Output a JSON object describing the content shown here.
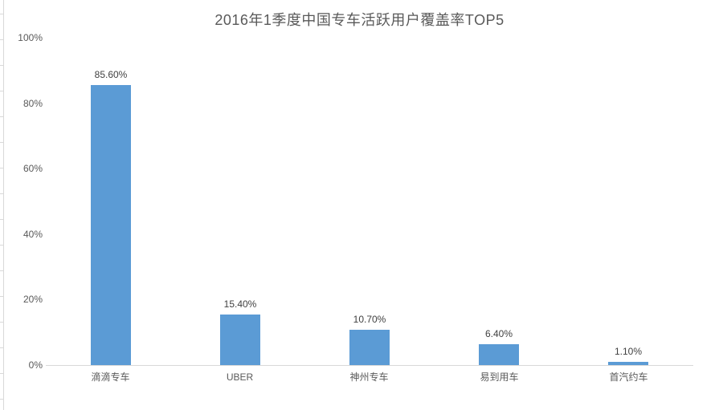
{
  "title": "2016年1季度中国专车活跃用户覆盖率TOP5",
  "chart_data": {
    "type": "bar",
    "title": "2016年1季度中国专车活跃用户覆盖率TOP5",
    "categories": [
      "滴滴专车",
      "UBER",
      "神州专车",
      "易到用车",
      "首汽约车"
    ],
    "values": [
      85.6,
      15.4,
      10.7,
      6.4,
      1.1
    ],
    "data_labels": [
      "85.60%",
      "15.40%",
      "10.70%",
      "6.40%",
      "1.10%"
    ],
    "xlabel": "",
    "ylabel": "",
    "ylim": [
      0,
      100
    ],
    "ytick_labels": [
      "0%",
      "20%",
      "40%",
      "60%",
      "80%",
      "100%"
    ],
    "ytick_values": [
      0,
      20,
      40,
      60,
      80,
      100
    ],
    "grid": false,
    "legend_position": "none",
    "bar_color": "#5B9BD5",
    "axis_line_color": "#D9D9D9",
    "title_color": "#595959",
    "label_color": "#404040",
    "tick_label_color": "#595959"
  }
}
